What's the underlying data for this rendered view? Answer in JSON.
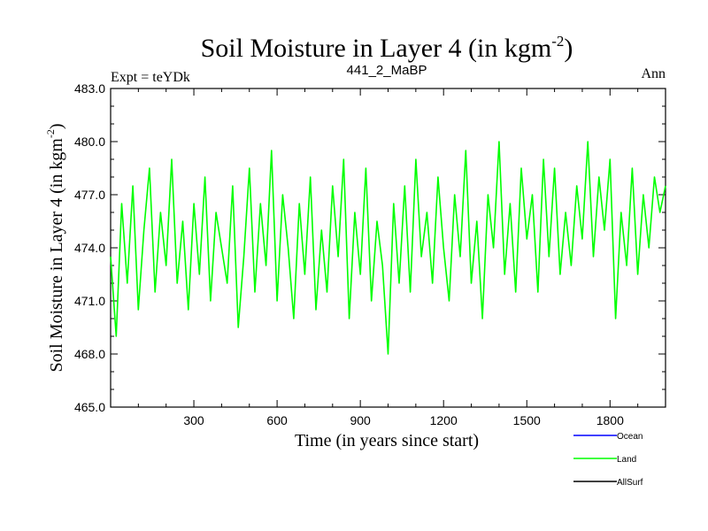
{
  "chart_data": {
    "type": "line",
    "title": "Soil Moisture in Layer 4 (in kgm",
    "title_sup": "-2",
    "title_close": ")",
    "subtitle_left": "Expt = teYDk",
    "subtitle_center": "441_2_MaBP",
    "subtitle_right": "Ann",
    "xlabel": "Time (in years since start)",
    "ylabel": "Soil Moisture in Layer 4 (in kgm",
    "ylabel_sup": "-2",
    "ylabel_close": ")",
    "xlim": [
      0,
      2000
    ],
    "ylim": [
      465.0,
      483.0
    ],
    "x_ticks": [
      300,
      600,
      900,
      1200,
      1500,
      1800
    ],
    "x_tick_labels": [
      "300",
      "600",
      "900",
      "1200",
      "1500",
      "1800"
    ],
    "y_ticks": [
      465,
      468,
      471,
      474,
      477,
      480,
      483
    ],
    "y_tick_labels": [
      "465.0",
      "468.0",
      "471.0",
      "474.0",
      "477.0",
      "480.0",
      "483.0"
    ],
    "series": [
      {
        "name": "Ocean",
        "color": "#0000ff",
        "x": [],
        "values": []
      },
      {
        "name": "Land",
        "color": "#00ff00",
        "x": [
          0,
          20,
          40,
          60,
          80,
          100,
          120,
          140,
          160,
          180,
          200,
          220,
          240,
          260,
          280,
          300,
          320,
          340,
          360,
          380,
          400,
          420,
          440,
          460,
          480,
          500,
          520,
          540,
          560,
          580,
          600,
          620,
          640,
          660,
          680,
          700,
          720,
          740,
          760,
          780,
          800,
          820,
          840,
          860,
          880,
          900,
          920,
          940,
          960,
          980,
          1000,
          1020,
          1040,
          1060,
          1080,
          1100,
          1120,
          1140,
          1160,
          1180,
          1200,
          1220,
          1240,
          1260,
          1280,
          1300,
          1320,
          1340,
          1360,
          1380,
          1400,
          1420,
          1440,
          1460,
          1480,
          1500,
          1520,
          1540,
          1560,
          1580,
          1600,
          1620,
          1640,
          1660,
          1680,
          1700,
          1720,
          1740,
          1760,
          1780,
          1800,
          1820,
          1840,
          1860,
          1880,
          1900,
          1920,
          1940,
          1960,
          1980,
          2000
        ],
        "values": [
          473.5,
          469.0,
          476.5,
          472.0,
          477.5,
          470.5,
          475.0,
          478.5,
          471.5,
          476.0,
          473.0,
          479.0,
          472.0,
          475.5,
          470.5,
          476.5,
          472.5,
          478.0,
          471.0,
          476.0,
          474.0,
          472.0,
          477.5,
          469.5,
          473.5,
          478.5,
          471.5,
          476.5,
          473.0,
          479.5,
          471.0,
          477.0,
          474.0,
          470.0,
          476.5,
          472.5,
          478.0,
          470.5,
          475.0,
          471.5,
          477.5,
          473.5,
          479.0,
          470.0,
          476.0,
          472.5,
          478.5,
          471.0,
          475.5,
          473.0,
          468.0,
          476.5,
          472.0,
          477.5,
          471.5,
          479.0,
          473.5,
          476.0,
          472.0,
          478.0,
          474.0,
          471.0,
          477.0,
          473.5,
          479.5,
          472.0,
          475.5,
          470.0,
          477.0,
          474.0,
          480.0,
          472.5,
          476.5,
          471.5,
          478.5,
          474.5,
          477.0,
          471.5,
          479.0,
          473.5,
          478.5,
          472.5,
          476.0,
          473.0,
          477.5,
          474.5,
          480.0,
          473.5,
          478.0,
          475.0,
          479.0,
          470.0,
          476.0,
          473.0,
          478.5,
          472.5,
          477.0,
          474.0,
          478.0,
          476.0,
          477.5
        ]
      },
      {
        "name": "AllSurf",
        "color": "#000000",
        "x": [],
        "values": []
      }
    ],
    "legend": [
      "Ocean",
      "Land",
      "AllSurf"
    ],
    "legend_position": "bottom-right"
  }
}
